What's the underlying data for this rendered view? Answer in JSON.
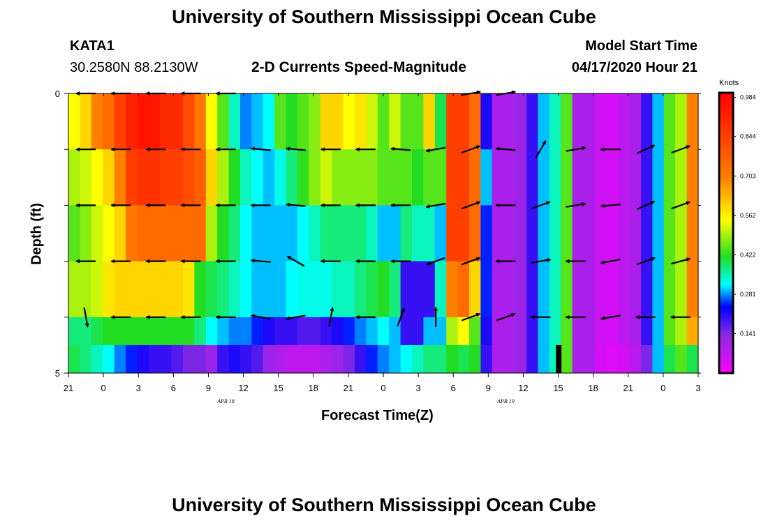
{
  "header": {
    "title_top": "University of Southern Mississippi Ocean Cube",
    "station": "KATA1",
    "coords": "30.2580N 88.2130W",
    "chart_title": "2-D Currents Speed-Magnitude",
    "model_label": "Model Start Time",
    "model_time": "04/17/2020 Hour 21",
    "title_bottom": "University of Southern Mississippi Ocean Cube"
  },
  "colors": {
    "magenta": "#ff00ff",
    "violet": "#8a2be2",
    "blue": "#0000ff",
    "cyan": "#00ffff",
    "green": "#22dd22",
    "yellow": "#ffff00",
    "orange": "#ff8000",
    "red": "#ff0000"
  },
  "chart_data": {
    "type": "heatmap",
    "title": "2-D Currents Speed-Magnitude",
    "xlabel": "Forecast Time(Z)",
    "ylabel": "Depth (ft)",
    "units": "Knots",
    "x_range_hours": [
      0,
      54
    ],
    "x_ticks": [
      "21",
      "0",
      "3",
      "6",
      "9",
      "12",
      "15",
      "18",
      "21",
      "0",
      "3",
      "6",
      "9",
      "12",
      "15",
      "18",
      "21",
      "0",
      "3"
    ],
    "date_labels": [
      {
        "label": "APR 18",
        "hour": 13.5
      },
      {
        "label": "APR 19",
        "hour": 37.5
      }
    ],
    "y_ticks": [
      "0",
      "5"
    ],
    "depth_range_ft": [
      0,
      5
    ],
    "layer_depths_ft": [
      0,
      1,
      2,
      3,
      4,
      5
    ],
    "colorbar_ticks": [
      "0.984",
      "0.844",
      "0.703",
      "0.562",
      "0.422",
      "0.281",
      "0.141"
    ],
    "colorbar_range": [
      0.0,
      1.0
    ],
    "speed_knots": [
      [
        0.55,
        0.6,
        0.7,
        0.75,
        0.85,
        0.92,
        0.95,
        0.95,
        0.9,
        0.9,
        0.82,
        0.72,
        0.55,
        0.45,
        0.35,
        0.28,
        0.3,
        0.32,
        0.45,
        0.42,
        0.45,
        0.48,
        0.6,
        0.6,
        0.55,
        0.58,
        0.52,
        0.45,
        0.52,
        0.45,
        0.45,
        0.6,
        0.4,
        0.85,
        0.85,
        0.75,
        0.22,
        0.1,
        0.1,
        0.12,
        0.2,
        0.3,
        0.35,
        0.45,
        0.1,
        0.1,
        0.06,
        0.05,
        0.08,
        0.1,
        0.2,
        0.3,
        0.45,
        0.5,
        0.7
      ],
      [
        0.5,
        0.52,
        0.55,
        0.6,
        0.7,
        0.85,
        0.88,
        0.88,
        0.85,
        0.85,
        0.82,
        0.78,
        0.6,
        0.5,
        0.42,
        0.35,
        0.32,
        0.3,
        0.33,
        0.38,
        0.43,
        0.48,
        0.52,
        0.48,
        0.48,
        0.48,
        0.48,
        0.45,
        0.45,
        0.45,
        0.42,
        0.45,
        0.45,
        0.85,
        0.85,
        0.75,
        0.3,
        0.1,
        0.1,
        0.12,
        0.2,
        0.3,
        0.35,
        0.45,
        0.1,
        0.1,
        0.06,
        0.05,
        0.08,
        0.1,
        0.2,
        0.3,
        0.45,
        0.5,
        0.7
      ],
      [
        0.45,
        0.48,
        0.52,
        0.55,
        0.6,
        0.72,
        0.75,
        0.75,
        0.75,
        0.75,
        0.75,
        0.75,
        0.5,
        0.42,
        0.38,
        0.32,
        0.3,
        0.3,
        0.3,
        0.3,
        0.32,
        0.35,
        0.38,
        0.38,
        0.38,
        0.38,
        0.35,
        0.3,
        0.3,
        0.38,
        0.35,
        0.35,
        0.3,
        0.85,
        0.85,
        0.75,
        0.25,
        0.1,
        0.1,
        0.12,
        0.2,
        0.3,
        0.35,
        0.45,
        0.1,
        0.1,
        0.06,
        0.05,
        0.08,
        0.1,
        0.2,
        0.3,
        0.45,
        0.5,
        0.7
      ],
      [
        0.5,
        0.5,
        0.52,
        0.58,
        0.6,
        0.6,
        0.6,
        0.6,
        0.6,
        0.6,
        0.58,
        0.42,
        0.4,
        0.38,
        0.35,
        0.32,
        0.3,
        0.3,
        0.3,
        0.32,
        0.33,
        0.33,
        0.33,
        0.35,
        0.35,
        0.38,
        0.4,
        0.42,
        0.38,
        0.2,
        0.2,
        0.2,
        0.35,
        0.7,
        0.75,
        0.6,
        0.25,
        0.1,
        0.1,
        0.12,
        0.2,
        0.3,
        0.35,
        0.45,
        0.1,
        0.1,
        0.06,
        0.05,
        0.08,
        0.1,
        0.2,
        0.3,
        0.45,
        0.5,
        0.7
      ],
      [
        0.38,
        0.38,
        0.4,
        0.42,
        0.42,
        0.42,
        0.42,
        0.42,
        0.42,
        0.42,
        0.42,
        0.38,
        0.32,
        0.3,
        0.28,
        0.28,
        0.25,
        0.22,
        0.2,
        0.2,
        0.18,
        0.18,
        0.2,
        0.22,
        0.25,
        0.28,
        0.3,
        0.32,
        0.3,
        0.2,
        0.2,
        0.3,
        0.3,
        0.5,
        0.55,
        0.45,
        0.22,
        0.1,
        0.1,
        0.12,
        0.2,
        0.3,
        0.35,
        0.45,
        0.1,
        0.1,
        0.06,
        0.05,
        0.08,
        0.1,
        0.2,
        0.3,
        0.45,
        0.5,
        0.65
      ]
    ],
    "bottom_layer_speed_knots": [
      0.4,
      0.38,
      0.35,
      0.32,
      0.28,
      0.25,
      0.22,
      0.2,
      0.2,
      0.18,
      0.15,
      0.15,
      0.12,
      0.2,
      0.22,
      0.2,
      0.18,
      0.12,
      0.1,
      0.08,
      0.08,
      0.08,
      0.1,
      0.12,
      0.15,
      0.2,
      0.25,
      0.28,
      0.3,
      0.32,
      0.35,
      0.38,
      0.38,
      0.42,
      0.4,
      0.42,
      0.2,
      0.1,
      0.1,
      0.12,
      0.2,
      0.3,
      0.35,
      0.45,
      0.1,
      0.1,
      0.05,
      0.04,
      0.05,
      0.08,
      0.15,
      0.3,
      0.4,
      0.45,
      0.4
    ],
    "vector_rows_depth_ft": [
      0,
      1,
      2,
      3,
      4,
      5
    ],
    "vector_hours": [
      1.5,
      4.5,
      7.5,
      10.5,
      13.5,
      16.5,
      19.5,
      22.5,
      25.5,
      28.5,
      31.5,
      34.5,
      37.5,
      40.5,
      43.5,
      46.5,
      49.5,
      52.5
    ],
    "vector_direction_deg": [
      [
        270,
        270,
        270,
        270,
        270,
        null,
        null,
        null,
        null,
        null,
        null,
        80,
        80,
        null,
        null,
        null,
        null,
        null
      ],
      [
        270,
        270,
        270,
        270,
        270,
        275,
        275,
        270,
        270,
        275,
        260,
        70,
        275,
        30,
        80,
        270,
        65,
        70
      ],
      [
        270,
        270,
        270,
        270,
        270,
        270,
        275,
        270,
        270,
        270,
        260,
        70,
        270,
        70,
        80,
        265,
        65,
        70
      ],
      [
        270,
        270,
        270,
        270,
        270,
        275,
        300,
        270,
        270,
        270,
        250,
        70,
        270,
        80,
        270,
        260,
        70,
        75
      ],
      [
        170,
        270,
        270,
        270,
        270,
        280,
        260,
        10,
        270,
        20,
        0,
        70,
        70,
        270,
        270,
        260,
        270,
        270
      ],
      [
        null,
        null,
        null,
        null,
        null,
        null,
        null,
        null,
        null,
        null,
        null,
        null,
        null,
        null,
        null,
        null,
        null,
        null
      ]
    ]
  }
}
